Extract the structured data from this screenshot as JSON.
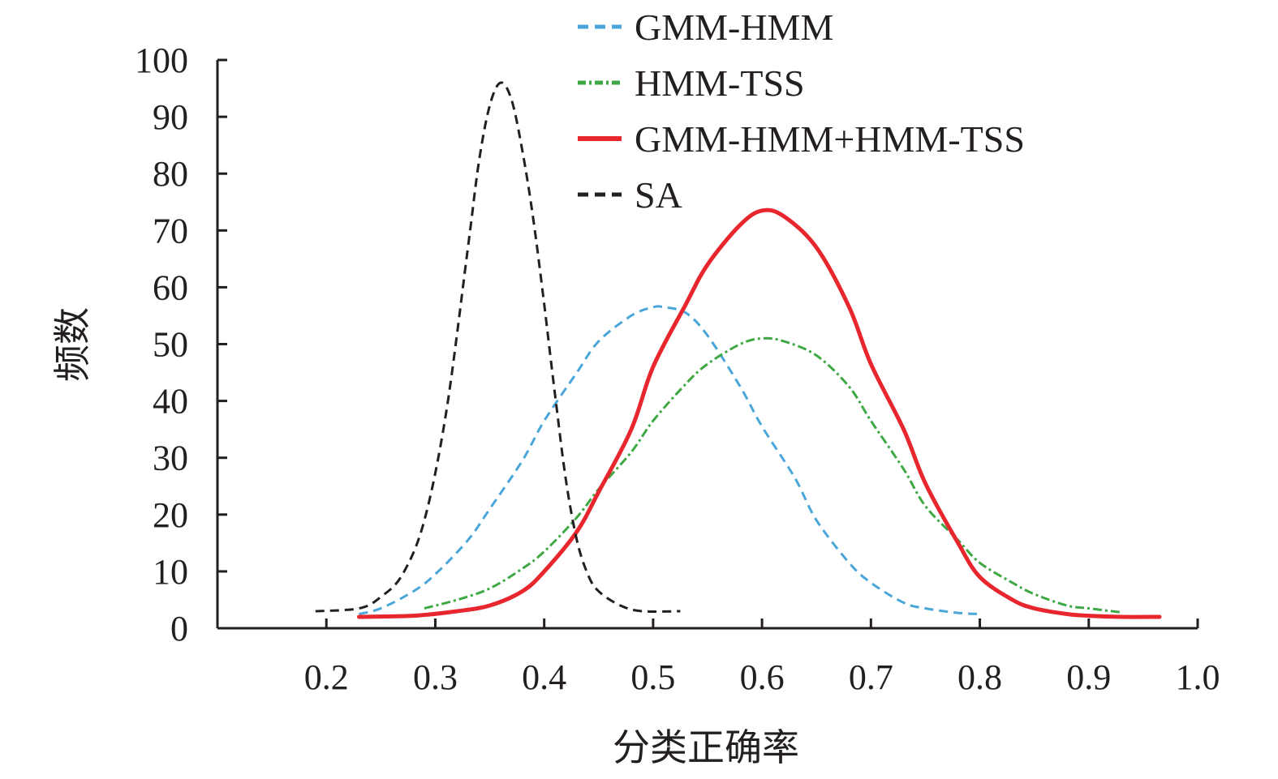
{
  "chart_data": {
    "type": "line",
    "title": "",
    "xlabel": "分类正确率",
    "ylabel": "频数",
    "xlim": [
      0.1,
      1.0
    ],
    "ylim": [
      0,
      100
    ],
    "x_ticks": [
      "0.2",
      "0.3",
      "0.4",
      "0.5",
      "0.6",
      "0.7",
      "0.8",
      "0.9",
      "1.0"
    ],
    "y_ticks": [
      "0",
      "10",
      "20",
      "30",
      "40",
      "50",
      "60",
      "70",
      "80",
      "90",
      "100"
    ],
    "grid": false,
    "legend_position": "top-center",
    "series": [
      {
        "name": "GMM-HMM",
        "color": "#4aa6d8",
        "dash": "dashed",
        "x": [
          0.23,
          0.25,
          0.28,
          0.3,
          0.33,
          0.35,
          0.38,
          0.4,
          0.43,
          0.45,
          0.48,
          0.5,
          0.51,
          0.53,
          0.55,
          0.58,
          0.6,
          0.63,
          0.65,
          0.68,
          0.7,
          0.73,
          0.75,
          0.78,
          0.8
        ],
        "y": [
          2.5,
          3.5,
          6.5,
          9.5,
          15.5,
          21,
          29.5,
          36.5,
          45,
          50.5,
          55,
          56.5,
          56.5,
          55.5,
          51.5,
          42.5,
          35.5,
          26.5,
          19,
          11.5,
          8,
          4.5,
          3.5,
          2.7,
          2.5
        ]
      },
      {
        "name": "HMM-TSS",
        "color": "#3fa845",
        "dash": "dash-dot",
        "x": [
          0.29,
          0.32,
          0.35,
          0.38,
          0.4,
          0.43,
          0.45,
          0.48,
          0.5,
          0.53,
          0.55,
          0.58,
          0.6,
          0.62,
          0.65,
          0.68,
          0.7,
          0.73,
          0.75,
          0.78,
          0.8,
          0.83,
          0.85,
          0.88,
          0.9,
          0.93
        ],
        "y": [
          3.5,
          5,
          7,
          10.5,
          13.5,
          19.5,
          24.5,
          31,
          36.5,
          43,
          46.5,
          50,
          51,
          50.5,
          48,
          42.5,
          36.5,
          28,
          21.5,
          15.5,
          11.5,
          8,
          6,
          4,
          3.5,
          2.8
        ]
      },
      {
        "name": "GMM-HMM+HMM-TSS",
        "color": "#e8262d",
        "dash": "solid",
        "x": [
          0.23,
          0.28,
          0.32,
          0.35,
          0.38,
          0.4,
          0.43,
          0.45,
          0.48,
          0.5,
          0.53,
          0.55,
          0.58,
          0.6,
          0.62,
          0.65,
          0.68,
          0.7,
          0.73,
          0.75,
          0.78,
          0.8,
          0.83,
          0.85,
          0.88,
          0.9,
          0.93,
          0.965
        ],
        "y": [
          2,
          2.2,
          3,
          4,
          6.5,
          10,
          17,
          24,
          35,
          46,
          57,
          64,
          71,
          73.5,
          72.5,
          67,
          56.5,
          46.5,
          35,
          25.5,
          15,
          9,
          5,
          3.5,
          2.5,
          2.2,
          2,
          2
        ]
      },
      {
        "name": "SA",
        "color": "#231f20",
        "dash": "dashed",
        "x": [
          0.19,
          0.23,
          0.25,
          0.27,
          0.29,
          0.31,
          0.33,
          0.34,
          0.35,
          0.36,
          0.37,
          0.38,
          0.39,
          0.4,
          0.41,
          0.42,
          0.43,
          0.44,
          0.45,
          0.47,
          0.49,
          0.525
        ],
        "y": [
          3,
          3.5,
          5.5,
          9.5,
          19,
          38,
          67,
          82,
          92,
          96,
          93,
          84,
          72,
          57,
          41,
          26,
          15.5,
          9.5,
          6.5,
          4,
          3,
          3
        ]
      }
    ]
  }
}
